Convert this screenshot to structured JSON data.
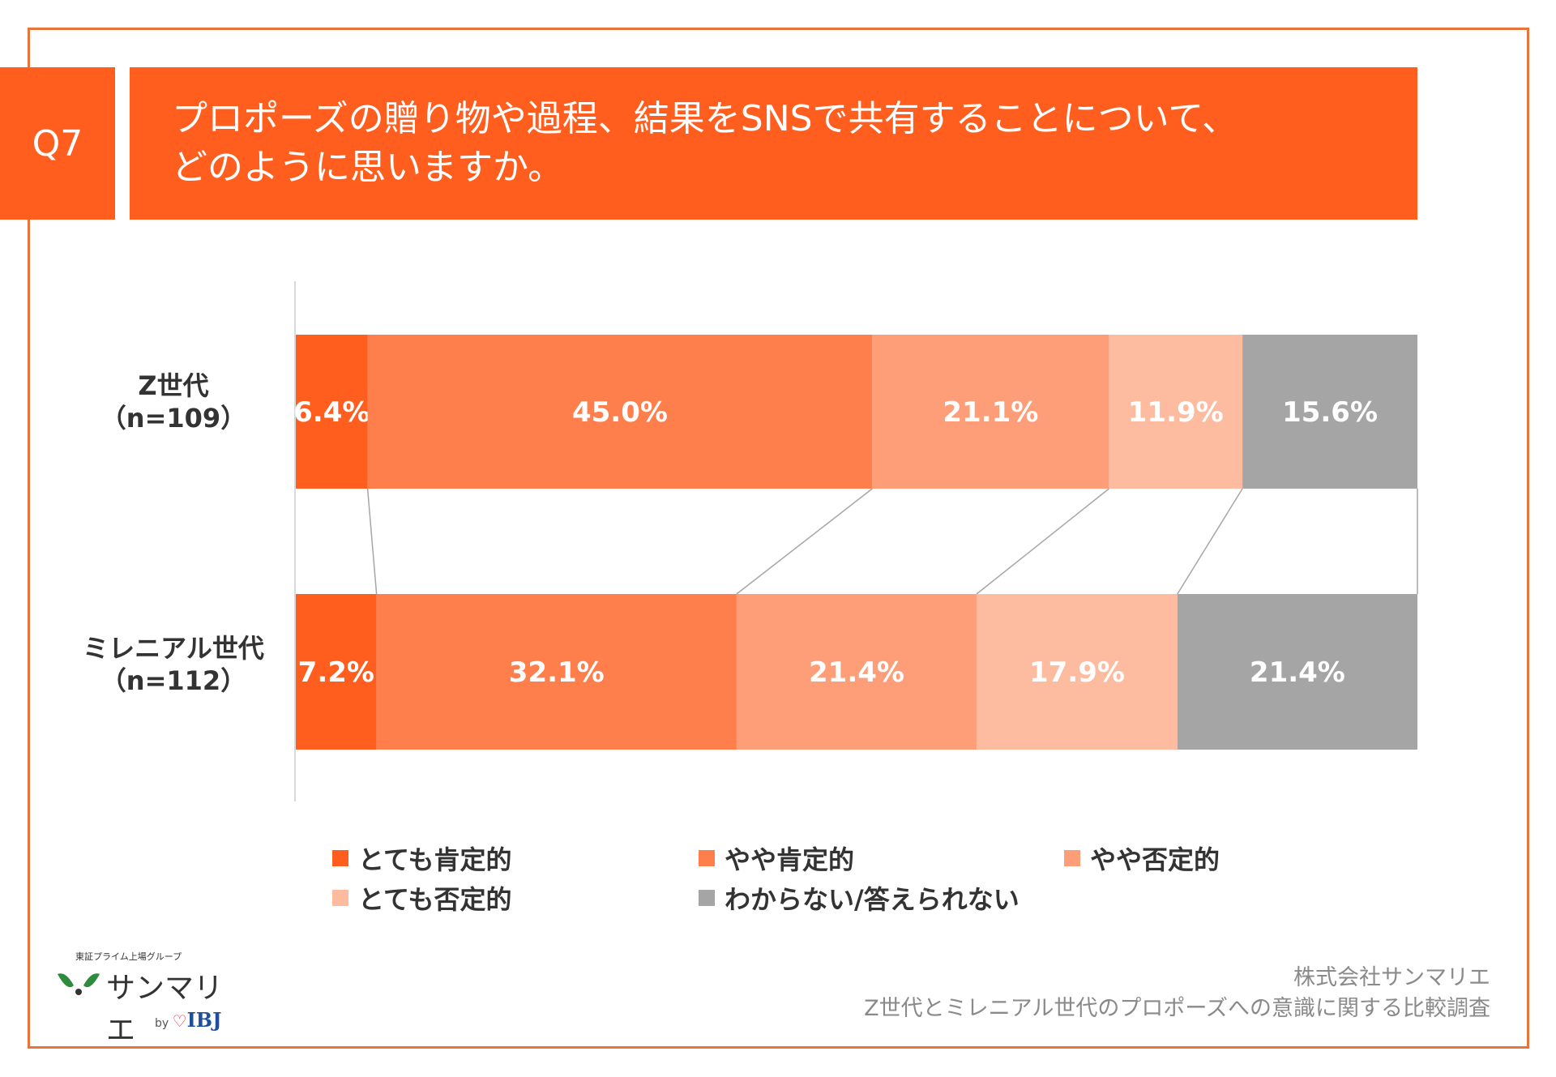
{
  "header": {
    "q_label": "Q7",
    "title_line1": "プロポーズの贈り物や過程、結果をSNSで共有することについて、",
    "title_line2": "どのように思いますか。"
  },
  "chart_data": {
    "type": "bar",
    "orientation": "horizontal",
    "stacked": "100%",
    "categories": [
      "Z世代\n（n=109）",
      "ミレニアル世代\n（n=112）"
    ],
    "category_lines": [
      [
        "Z世代",
        "（n=109）"
      ],
      [
        "ミレニアル世代",
        "（n=112）"
      ]
    ],
    "series": [
      {
        "name": "とても肯定的",
        "values": [
          6.4,
          7.2
        ],
        "labels": [
          "6.4%",
          "7.2%"
        ],
        "color": "#FF5E1F"
      },
      {
        "name": "やや肯定的",
        "values": [
          45.0,
          32.1
        ],
        "labels": [
          "45.0%",
          "32.1%"
        ],
        "color": "#FE7E4C"
      },
      {
        "name": "やや否定的",
        "values": [
          21.1,
          21.4
        ],
        "labels": [
          "21.1%",
          "21.4%"
        ],
        "color": "#FE9E79"
      },
      {
        "name": "とても否定的",
        "values": [
          11.9,
          17.9
        ],
        "labels": [
          "11.9%",
          "17.9%"
        ],
        "color": "#FDBBA0"
      },
      {
        "name": "わからない/答えられない",
        "values": [
          15.6,
          21.4
        ],
        "labels": [
          "15.6%",
          "21.4%"
        ],
        "color": "#A5A5A5"
      }
    ],
    "xlim": [
      0,
      100
    ],
    "legend": "bottom",
    "series_lines": true
  },
  "footer": {
    "company": "株式会社サンマリエ",
    "survey": "Z世代とミレニアル世代のプロポーズへの意識に関する比較調査"
  },
  "logo": {
    "group": "東証プライム上場グループ",
    "name": "サンマリエ",
    "by": "by",
    "ibj": "IBJ"
  }
}
